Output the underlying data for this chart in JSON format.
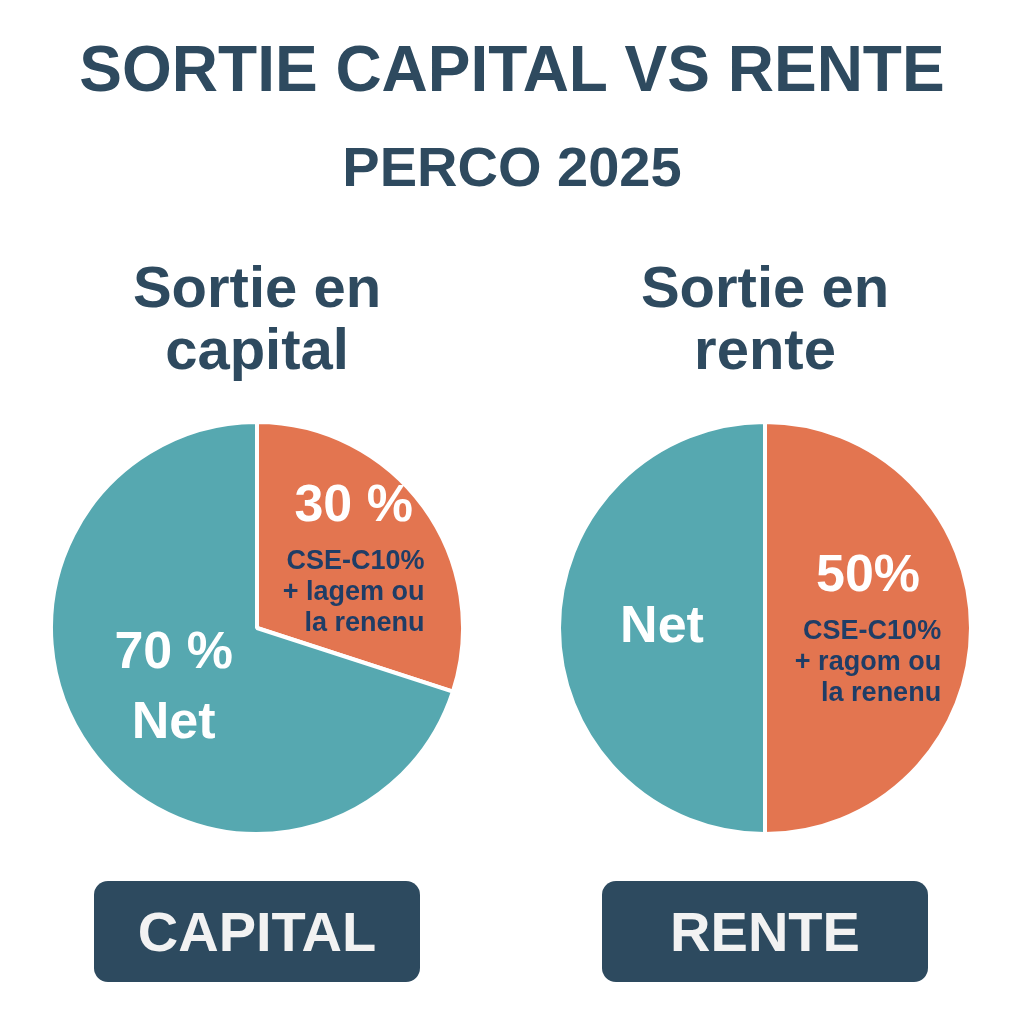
{
  "chart_data": [
    {
      "type": "other",
      "title": "SORTIE CAPITAL VS RENTE",
      "subtitle": "PERCO 2025"
    },
    {
      "type": "pie",
      "title": "Sortie en capital",
      "categories": [
        "CSE-C10% + lagem ou la renenu",
        "Net"
      ],
      "values": [
        30,
        70
      ],
      "colors": [
        "#e37550",
        "#56a8b0"
      ],
      "value_labels": [
        "30 %",
        "70 %"
      ],
      "annotations": [
        "CAPITAL"
      ]
    },
    {
      "type": "pie",
      "title": "Sortie en rente",
      "categories": [
        "CSE-C10% + ragom ou la renenu",
        "Net"
      ],
      "values": [
        50,
        50
      ],
      "colors": [
        "#e37550",
        "#56a8b0"
      ],
      "value_labels": [
        "50%",
        null
      ],
      "annotations": [
        "RENTE"
      ]
    }
  ]
}
